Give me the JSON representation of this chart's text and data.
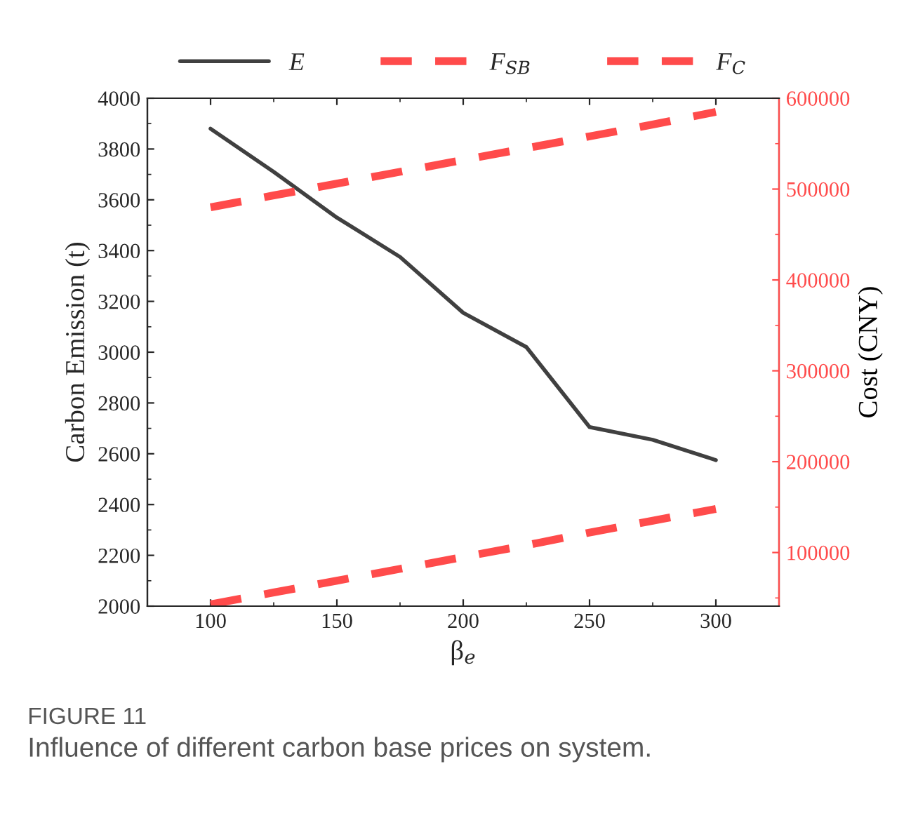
{
  "chart_data": {
    "type": "line",
    "xlabel": "β$_{e}$",
    "ylabel": "Carbon Emission (t)",
    "y2label": "Cost (CNY)",
    "x": [
      100,
      125,
      150,
      175,
      200,
      225,
      250,
      275,
      300
    ],
    "series": [
      {
        "name": "E",
        "color": "#404040",
        "line_style": "solid",
        "values": [
          3880,
          3710,
          3530,
          3375,
          3155,
          3020,
          2705,
          2655,
          2575
        ]
      },
      {
        "name": "F$_{SB}$",
        "color": "#ff4b4b",
        "line_style": "dashed",
        "axis": "y2",
        "values": [
          480000,
          493000,
          506000,
          519000,
          532000,
          545000,
          558000,
          571000,
          585000
        ]
      },
      {
        "name": "F$_{C}$",
        "color": "#ff4b4b",
        "line_style": "dashed",
        "axis": "y2",
        "values": [
          43000,
          56000,
          69000,
          82000,
          95000,
          108000,
          122000,
          135000,
          148000
        ]
      }
    ],
    "xlim": [
      75,
      325
    ],
    "xticks": [
      100,
      150,
      200,
      250,
      300
    ],
    "ylim": [
      2000,
      4000
    ],
    "yticks": [
      2000,
      2200,
      2400,
      2600,
      2800,
      3000,
      3200,
      3400,
      3600,
      3800,
      4000
    ],
    "y2lim": [
      41000,
      600000
    ],
    "y2ticks": [
      100000,
      200000,
      300000,
      400000,
      500000,
      600000
    ],
    "grid": false,
    "legend": "top",
    "marker": "none",
    "annotations": [
      "FIGURE 11",
      "Influence of different carbon base prices on system."
    ]
  }
}
